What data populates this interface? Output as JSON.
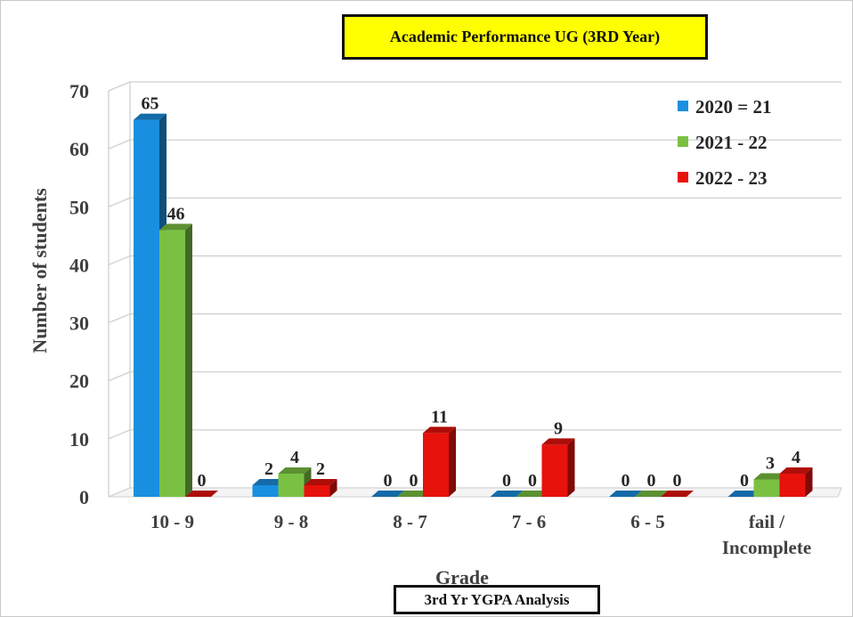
{
  "chart_data": {
    "type": "bar",
    "title": "Academic Performance UG (3RD Year)",
    "caption": "3rd Yr YGPA Analysis",
    "xlabel": "Grade",
    "ylabel": "Number of students",
    "ylim": [
      0,
      70
    ],
    "yticks": [
      0,
      10,
      20,
      30,
      40,
      50,
      60,
      70
    ],
    "grid": true,
    "legend_position": "top-right",
    "categories": [
      [
        "10 - 9"
      ],
      [
        "9 - 8"
      ],
      [
        "8 - 7"
      ],
      [
        "7 - 6"
      ],
      [
        "6 - 5"
      ],
      [
        "fail /",
        "Incomplete"
      ]
    ],
    "series": [
      {
        "name": "2020 = 21",
        "color": "#1a8fe0",
        "values": [
          65,
          2,
          0,
          0,
          0,
          0
        ]
      },
      {
        "name": "2021 - 22",
        "color": "#7ac143",
        "values": [
          46,
          4,
          0,
          0,
          0,
          3
        ]
      },
      {
        "name": "2022 - 23",
        "color": "#e8120c",
        "values": [
          0,
          2,
          11,
          9,
          0,
          4
        ]
      }
    ]
  }
}
